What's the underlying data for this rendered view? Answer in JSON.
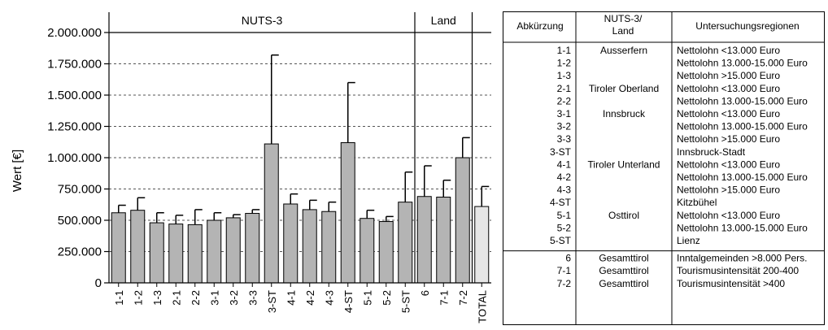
{
  "chart_data": {
    "type": "bar",
    "ylabel": "Wert [€]",
    "ylim": [
      0,
      2000000
    ],
    "yticks": [
      0,
      250000,
      500000,
      750000,
      1000000,
      1250000,
      1500000,
      1750000,
      2000000
    ],
    "ytick_labels": [
      "0",
      "250.000",
      "500.000",
      "750.000",
      "1.000.000",
      "1.250.000",
      "1.500.000",
      "1.750.000",
      "2.000.000"
    ],
    "grid": "horizontal-dashed",
    "group_labels": {
      "nuts3": "NUTS-3",
      "land": "Land"
    },
    "categories": [
      "1-1",
      "1-2",
      "1-3",
      "2-1",
      "2-2",
      "3-1",
      "3-2",
      "3-3",
      "3-ST",
      "4-1",
      "4-2",
      "4-3",
      "4-ST",
      "5-1",
      "5-2",
      "5-ST",
      "6",
      "7-1",
      "7-2",
      "TOTAL"
    ],
    "values": [
      560000,
      580000,
      480000,
      470000,
      465000,
      500000,
      520000,
      555000,
      1110000,
      630000,
      585000,
      570000,
      1120000,
      515000,
      490000,
      645000,
      690000,
      685000,
      1000000,
      610000
    ],
    "error_upper": [
      620000,
      680000,
      560000,
      540000,
      585000,
      560000,
      545000,
      585000,
      1820000,
      710000,
      660000,
      645000,
      1600000,
      580000,
      530000,
      885000,
      935000,
      820000,
      1160000,
      770000
    ],
    "bar_color": "#b4b4b4",
    "total_bar_color": "#e6e6e6"
  },
  "table": {
    "headers": {
      "abbr": "Abkürzung",
      "nuts": "NUTS-3/",
      "nuts2": "Land",
      "regions": "Untersuchungsregionen"
    },
    "rows": [
      {
        "abbr": "1-1",
        "region": "Nettolohn <13.000 Euro"
      },
      {
        "abbr": "1-2",
        "region": "Nettolohn 13.000-15.000 Euro"
      },
      {
        "abbr": "1-3",
        "region": "Nettolohn >15.000 Euro"
      },
      {
        "abbr": "2-1",
        "region": "Nettolohn <13.000 Euro"
      },
      {
        "abbr": "2-2",
        "region": "Nettolohn 13.000-15.000 Euro"
      },
      {
        "abbr": "3-1",
        "region": "Nettolohn <13.000 Euro"
      },
      {
        "abbr": "3-2",
        "region": "Nettolohn 13.000-15.000 Euro"
      },
      {
        "abbr": "3-3",
        "region": "Nettolohn >15.000 Euro"
      },
      {
        "abbr": "3-ST",
        "region": "Innsbruck-Stadt"
      },
      {
        "abbr": "4-1",
        "region": "Nettolohn <13.000 Euro"
      },
      {
        "abbr": "4-2",
        "region": "Nettolohn 13.000-15.000 Euro"
      },
      {
        "abbr": "4-3",
        "region": "Nettolohn >15.000 Euro"
      },
      {
        "abbr": "4-ST",
        "region": "Kitzbühel"
      },
      {
        "abbr": "5-1",
        "region": "Nettolohn <13.000 Euro"
      },
      {
        "abbr": "5-2",
        "region": "Nettolohn 13.000-15.000 Euro"
      },
      {
        "abbr": "5-ST",
        "region": "Lienz"
      },
      {
        "abbr": "6",
        "region": "Inntalgemeinden >8.000 Pers."
      },
      {
        "abbr": "7-1",
        "region": "Tourismusintensität 200-400"
      },
      {
        "abbr": "7-2",
        "region": "Tourismusintensität >400"
      }
    ],
    "nuts_labels": [
      {
        "text": "Ausserfern",
        "row": 0
      },
      {
        "text": "Tiroler Oberland",
        "row": 3
      },
      {
        "text": "Innsbruck",
        "row": 5
      },
      {
        "text": "Tiroler Unterland",
        "row": 9
      },
      {
        "text": "Osttirol",
        "row": 13
      },
      {
        "text": "Gesamttirol",
        "row": 16
      },
      {
        "text": "Gesamttirol",
        "row": 17
      },
      {
        "text": "Gesamttirol",
        "row": 18
      }
    ]
  }
}
